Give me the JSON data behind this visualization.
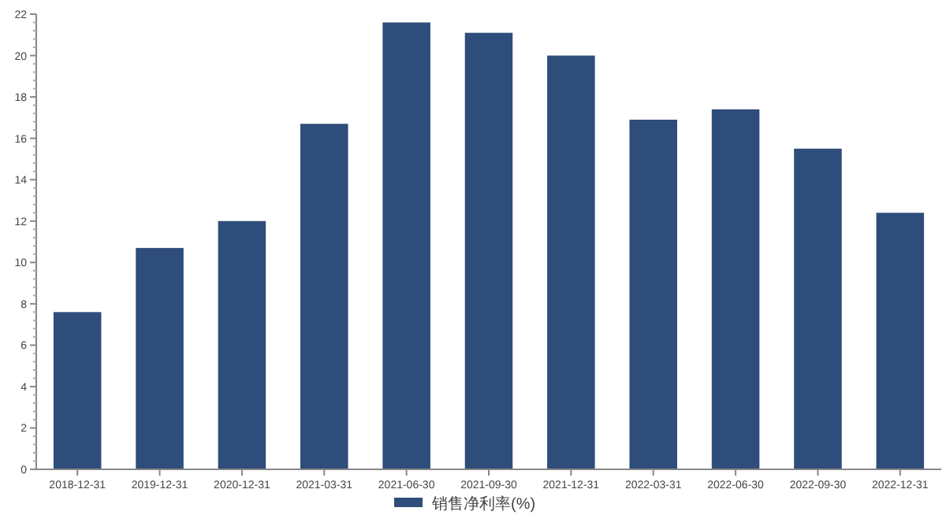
{
  "chart_data": {
    "type": "bar",
    "categories": [
      "2018-12-31",
      "2019-12-31",
      "2020-12-31",
      "2021-03-31",
      "2021-06-30",
      "2021-09-30",
      "2021-12-31",
      "2022-03-31",
      "2022-06-30",
      "2022-09-30",
      "2022-12-31"
    ],
    "series": [
      {
        "name": "销售净利率(%)",
        "color": "#2e4d7a",
        "values": [
          7.6,
          10.7,
          12.0,
          16.7,
          21.6,
          21.1,
          20.0,
          16.9,
          17.4,
          15.5,
          12.4
        ]
      }
    ],
    "ylim": [
      0,
      22
    ],
    "yticks": [
      0,
      2,
      4,
      6,
      8,
      10,
      12,
      14,
      16,
      18,
      20,
      22
    ],
    "legend": "bottom",
    "grid": false
  }
}
